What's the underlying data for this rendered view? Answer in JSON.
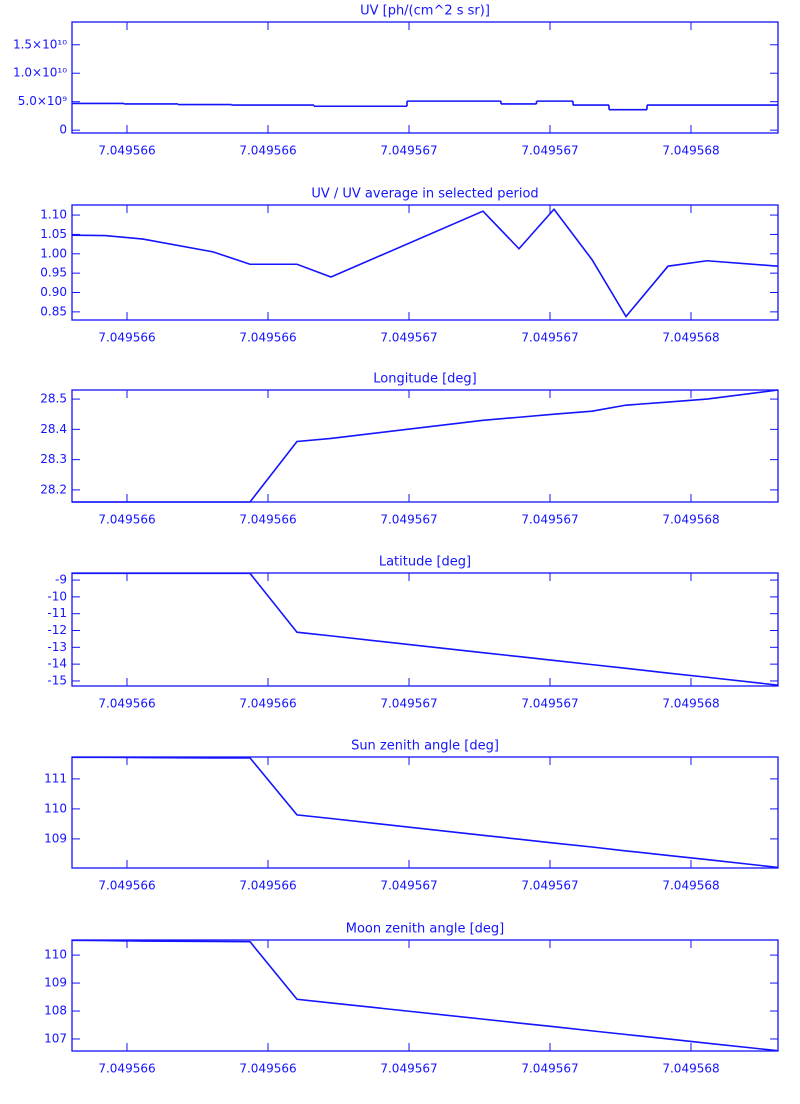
{
  "chart_data": [
    {
      "type": "line",
      "step": true,
      "title": "UV [ph/(cm^2 s sr)]",
      "color": "#1414ff",
      "x": [
        7.049565605,
        7.049565722,
        7.0495658567,
        7.049566105,
        7.0495662362,
        7.0495664028,
        7.0495665234,
        7.0495670624,
        7.0495671901,
        7.0495673142,
        7.0495674489,
        7.0495675695,
        7.0495677184,
        7.0495678567,
        7.0495681085
      ],
      "values": [
        4700000000,
        4700000000,
        4600000000,
        4500000000,
        4400000000,
        4400000000,
        4200000000,
        5100000000,
        4600000000,
        5100000000,
        4400000000,
        3600000000,
        4400000000,
        4400000000,
        4400000000
      ],
      "xlim": [
        7.049565605,
        7.0495681085
      ],
      "xticks": [
        {
          "value": 7.0495658,
          "label": "7.049566"
        },
        {
          "value": 7.0495663,
          "label": "7.049566"
        },
        {
          "value": 7.0495668,
          "label": "7.049567"
        },
        {
          "value": 7.0495673,
          "label": "7.049567"
        },
        {
          "value": 7.0495678,
          "label": "7.049568"
        }
      ],
      "ylim": [
        -500000000,
        19000000000
      ],
      "yticks": [
        0,
        {
          "value": 5000000000,
          "label": "5.0×10⁹"
        },
        {
          "value": 10000000000,
          "label": "1.0×10¹⁰"
        },
        {
          "value": 15000000000,
          "label": "1.5×10¹⁰"
        }
      ]
    },
    {
      "type": "line",
      "title": "UV / UV average in selected period",
      "color": "#1414ff",
      "x": [
        7.049565605,
        7.049565722,
        7.0495658567,
        7.049566105,
        7.0495662362,
        7.0495664028,
        7.0495665234,
        7.0495670624,
        7.0495671901,
        7.0495673142,
        7.0495674489,
        7.0495675695,
        7.0495677184,
        7.0495678567,
        7.0495681085
      ],
      "values": [
        1.048,
        1.047,
        1.038,
        1.005,
        0.973,
        0.973,
        0.94,
        1.11,
        1.013,
        1.115,
        0.985,
        0.838,
        0.968,
        0.982,
        0.968
      ],
      "xlim": [
        7.049565605,
        7.0495681085
      ],
      "xticks": [
        {
          "value": 7.0495658,
          "label": "7.049566"
        },
        {
          "value": 7.0495663,
          "label": "7.049566"
        },
        {
          "value": 7.0495668,
          "label": "7.049567"
        },
        {
          "value": 7.0495673,
          "label": "7.049567"
        },
        {
          "value": 7.0495678,
          "label": "7.049568"
        }
      ],
      "ylim": [
        0.829,
        1.126
      ],
      "yticks": [
        0.85,
        {
          "value": 0.9,
          "label": "0.90"
        },
        0.95,
        {
          "value": 1.0,
          "label": "1.00"
        },
        1.05,
        {
          "value": 1.1,
          "label": "1.10"
        }
      ]
    },
    {
      "type": "line",
      "title": "Longitude [deg]",
      "color": "#1414ff",
      "x": [
        7.049565605,
        7.049565722,
        7.0495658567,
        7.049566105,
        7.0495662362,
        7.0495664028,
        7.0495665234,
        7.0495670624,
        7.0495671901,
        7.0495673142,
        7.0495674489,
        7.0495675695,
        7.0495677184,
        7.0495678567,
        7.0495681085
      ],
      "values": [
        28.16,
        28.16,
        28.16,
        28.16,
        28.16,
        28.36,
        28.37,
        28.43,
        28.44,
        28.45,
        28.46,
        28.48,
        28.49,
        28.5,
        28.53
      ],
      "xlim": [
        7.049565605,
        7.0495681085
      ],
      "xticks": [
        {
          "value": 7.0495658,
          "label": "7.049566"
        },
        {
          "value": 7.0495663,
          "label": "7.049566"
        },
        {
          "value": 7.0495668,
          "label": "7.049567"
        },
        {
          "value": 7.0495673,
          "label": "7.049567"
        },
        {
          "value": 7.0495678,
          "label": "7.049568"
        }
      ],
      "ylim": [
        28.16,
        28.53
      ],
      "yticks": [
        28.2,
        28.3,
        28.4,
        28.5
      ]
    },
    {
      "type": "line",
      "title": "Latitude [deg]",
      "color": "#1414ff",
      "x": [
        7.049565605,
        7.049565722,
        7.0495658567,
        7.049566105,
        7.0495662362,
        7.0495664028,
        7.0495665234,
        7.0495670624,
        7.0495671901,
        7.0495673142,
        7.0495674489,
        7.0495675695,
        7.0495677184,
        7.0495678567,
        7.0495681085
      ],
      "values": [
        -8.6,
        -8.6,
        -8.6,
        -8.6,
        -8.6,
        -12.1,
        -12.32,
        -13.32,
        -13.55,
        -13.78,
        -14.03,
        -14.25,
        -14.53,
        -14.78,
        -15.25
      ],
      "xlim": [
        7.049565605,
        7.0495681085
      ],
      "xticks": [
        {
          "value": 7.0495658,
          "label": "7.049566"
        },
        {
          "value": 7.0495663,
          "label": "7.049566"
        },
        {
          "value": 7.0495668,
          "label": "7.049567"
        },
        {
          "value": 7.0495673,
          "label": "7.049567"
        },
        {
          "value": 7.0495678,
          "label": "7.049568"
        }
      ],
      "ylim": [
        -15.3,
        -8.58
      ],
      "yticks": [
        -15,
        -14,
        -13,
        -12,
        -11,
        -10,
        -9
      ]
    },
    {
      "type": "line",
      "title": "Sun zenith angle [deg]",
      "color": "#1414ff",
      "x": [
        7.049565605,
        7.049565722,
        7.0495658567,
        7.049566105,
        7.0495662362,
        7.0495664028,
        7.0495665234,
        7.0495670624,
        7.0495671901,
        7.0495673142,
        7.0495674489,
        7.0495675695,
        7.0495677184,
        7.0495678567,
        7.0495681085
      ],
      "values": [
        111.72,
        111.72,
        111.71,
        111.7,
        111.7,
        109.8,
        109.68,
        109.12,
        108.99,
        108.86,
        108.73,
        108.6,
        108.45,
        108.31,
        108.05
      ],
      "xlim": [
        7.049565605,
        7.0495681085
      ],
      "xticks": [
        {
          "value": 7.0495658,
          "label": "7.049566"
        },
        {
          "value": 7.0495663,
          "label": "7.049566"
        },
        {
          "value": 7.0495668,
          "label": "7.049567"
        },
        {
          "value": 7.0495673,
          "label": "7.049567"
        },
        {
          "value": 7.0495678,
          "label": "7.049568"
        }
      ],
      "ylim": [
        108.03,
        111.73
      ],
      "yticks": [
        109,
        110,
        111
      ]
    },
    {
      "type": "line",
      "title": "Moon zenith angle [deg]",
      "color": "#1414ff",
      "x": [
        7.049565605,
        7.049565722,
        7.0495658567,
        7.049566105,
        7.0495662362,
        7.0495664028,
        7.0495665234,
        7.0495670624,
        7.0495671901,
        7.0495673142,
        7.0495674489,
        7.0495675695,
        7.0495677184,
        7.0495678567,
        7.0495681085
      ],
      "values": [
        110.53,
        110.52,
        110.5,
        110.49,
        110.48,
        108.42,
        108.29,
        107.71,
        107.57,
        107.44,
        107.29,
        107.16,
        107.0,
        106.85,
        106.58
      ],
      "xlim": [
        7.049565605,
        7.0495681085
      ],
      "xticks": [
        {
          "value": 7.0495658,
          "label": "7.049566"
        },
        {
          "value": 7.0495663,
          "label": "7.049566"
        },
        {
          "value": 7.0495668,
          "label": "7.049567"
        },
        {
          "value": 7.0495673,
          "label": "7.049567"
        },
        {
          "value": 7.0495678,
          "label": "7.049568"
        }
      ],
      "ylim": [
        106.57,
        110.54
      ],
      "yticks": [
        107,
        108,
        109,
        110
      ]
    }
  ]
}
